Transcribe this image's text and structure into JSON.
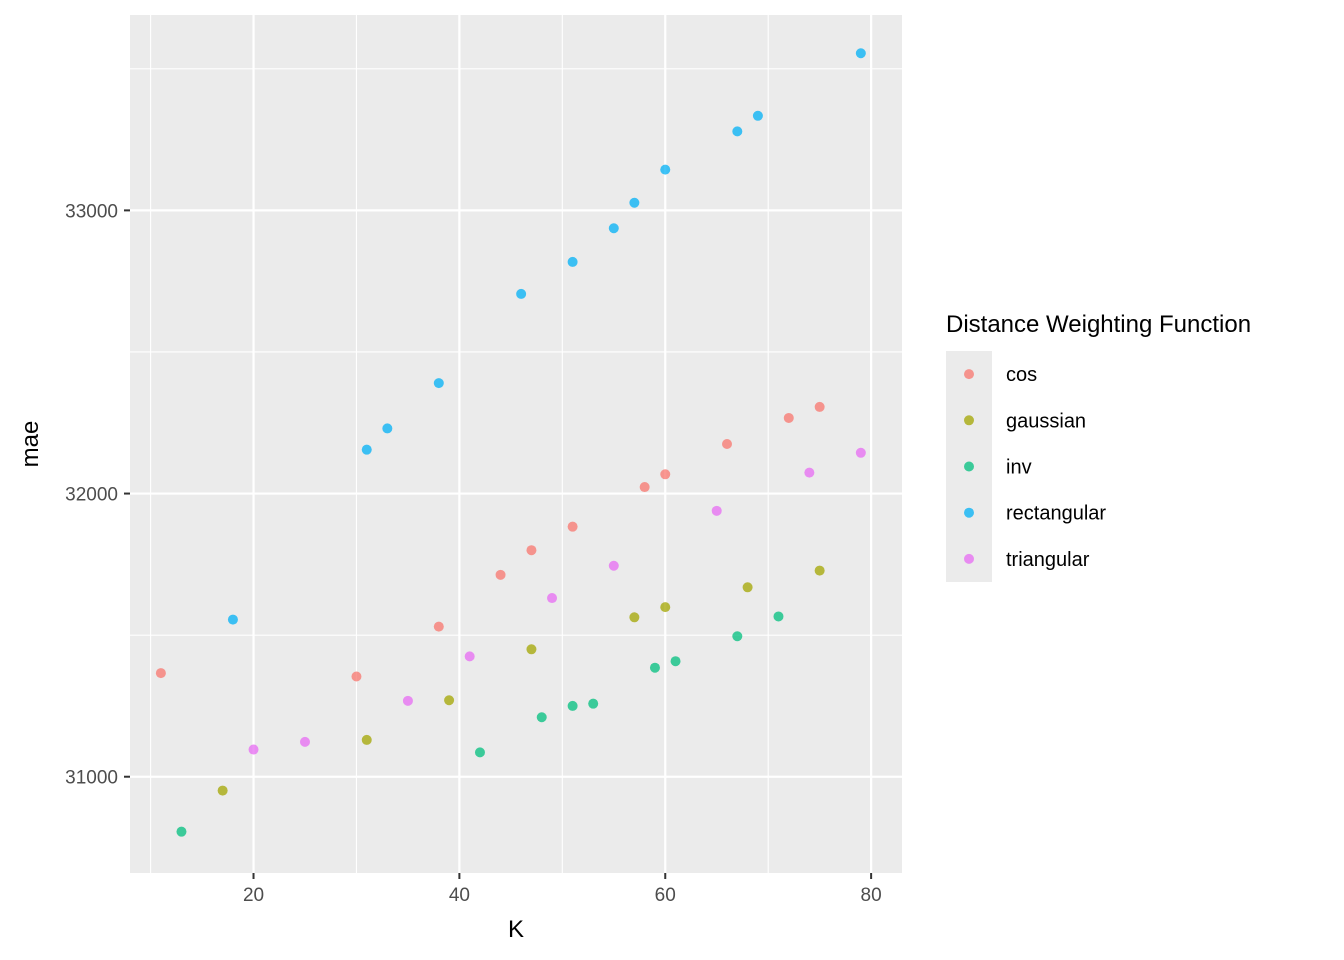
{
  "chart_data": {
    "type": "scatter",
    "xlabel": "K",
    "ylabel": "mae",
    "xlim": [
      8,
      83
    ],
    "ylim": [
      30660,
      33690
    ],
    "x_ticks": [
      20,
      40,
      60,
      80
    ],
    "y_ticks": [
      31000,
      32000,
      33000
    ],
    "grid": true,
    "legend": {
      "title": "Distance Weighting Function",
      "placement": "right"
    },
    "series": [
      {
        "name": "cos",
        "color": "#F8766D",
        "points": [
          {
            "x": 11,
            "y": 31366
          },
          {
            "x": 30,
            "y": 31354
          },
          {
            "x": 38,
            "y": 31530
          },
          {
            "x": 44,
            "y": 31713
          },
          {
            "x": 47,
            "y": 31800
          },
          {
            "x": 51,
            "y": 31883
          },
          {
            "x": 58,
            "y": 32023
          },
          {
            "x": 60,
            "y": 32068
          },
          {
            "x": 66,
            "y": 32175
          },
          {
            "x": 72,
            "y": 32267
          },
          {
            "x": 75,
            "y": 32306
          }
        ]
      },
      {
        "name": "gaussian",
        "color": "#A3A500",
        "points": [
          {
            "x": 17,
            "y": 30951
          },
          {
            "x": 31,
            "y": 31130
          },
          {
            "x": 39,
            "y": 31270
          },
          {
            "x": 47,
            "y": 31450
          },
          {
            "x": 57,
            "y": 31563
          },
          {
            "x": 60,
            "y": 31599
          },
          {
            "x": 68,
            "y": 31669
          },
          {
            "x": 75,
            "y": 31728
          }
        ]
      },
      {
        "name": "inv",
        "color": "#00BF7D",
        "points": [
          {
            "x": 13,
            "y": 30806
          },
          {
            "x": 42,
            "y": 31086
          },
          {
            "x": 48,
            "y": 31210
          },
          {
            "x": 51,
            "y": 31250
          },
          {
            "x": 53,
            "y": 31258
          },
          {
            "x": 59,
            "y": 31385
          },
          {
            "x": 61,
            "y": 31408
          },
          {
            "x": 67,
            "y": 31496
          },
          {
            "x": 71,
            "y": 31566
          }
        ]
      },
      {
        "name": "rectangular",
        "color": "#00B0F6",
        "points": [
          {
            "x": 18,
            "y": 31555
          },
          {
            "x": 31,
            "y": 32155
          },
          {
            "x": 33,
            "y": 32230
          },
          {
            "x": 38,
            "y": 32390
          },
          {
            "x": 46,
            "y": 32705
          },
          {
            "x": 51,
            "y": 32818
          },
          {
            "x": 55,
            "y": 32937
          },
          {
            "x": 57,
            "y": 33027
          },
          {
            "x": 60,
            "y": 33144
          },
          {
            "x": 67,
            "y": 33279
          },
          {
            "x": 69,
            "y": 33334
          },
          {
            "x": 79,
            "y": 33555
          }
        ]
      },
      {
        "name": "triangular",
        "color": "#E76BF3",
        "points": [
          {
            "x": 20,
            "y": 31096
          },
          {
            "x": 25,
            "y": 31123
          },
          {
            "x": 35,
            "y": 31268
          },
          {
            "x": 41,
            "y": 31425
          },
          {
            "x": 49,
            "y": 31631
          },
          {
            "x": 55,
            "y": 31745
          },
          {
            "x": 65,
            "y": 31939
          },
          {
            "x": 74,
            "y": 32074
          },
          {
            "x": 79,
            "y": 32144
          }
        ]
      }
    ]
  }
}
